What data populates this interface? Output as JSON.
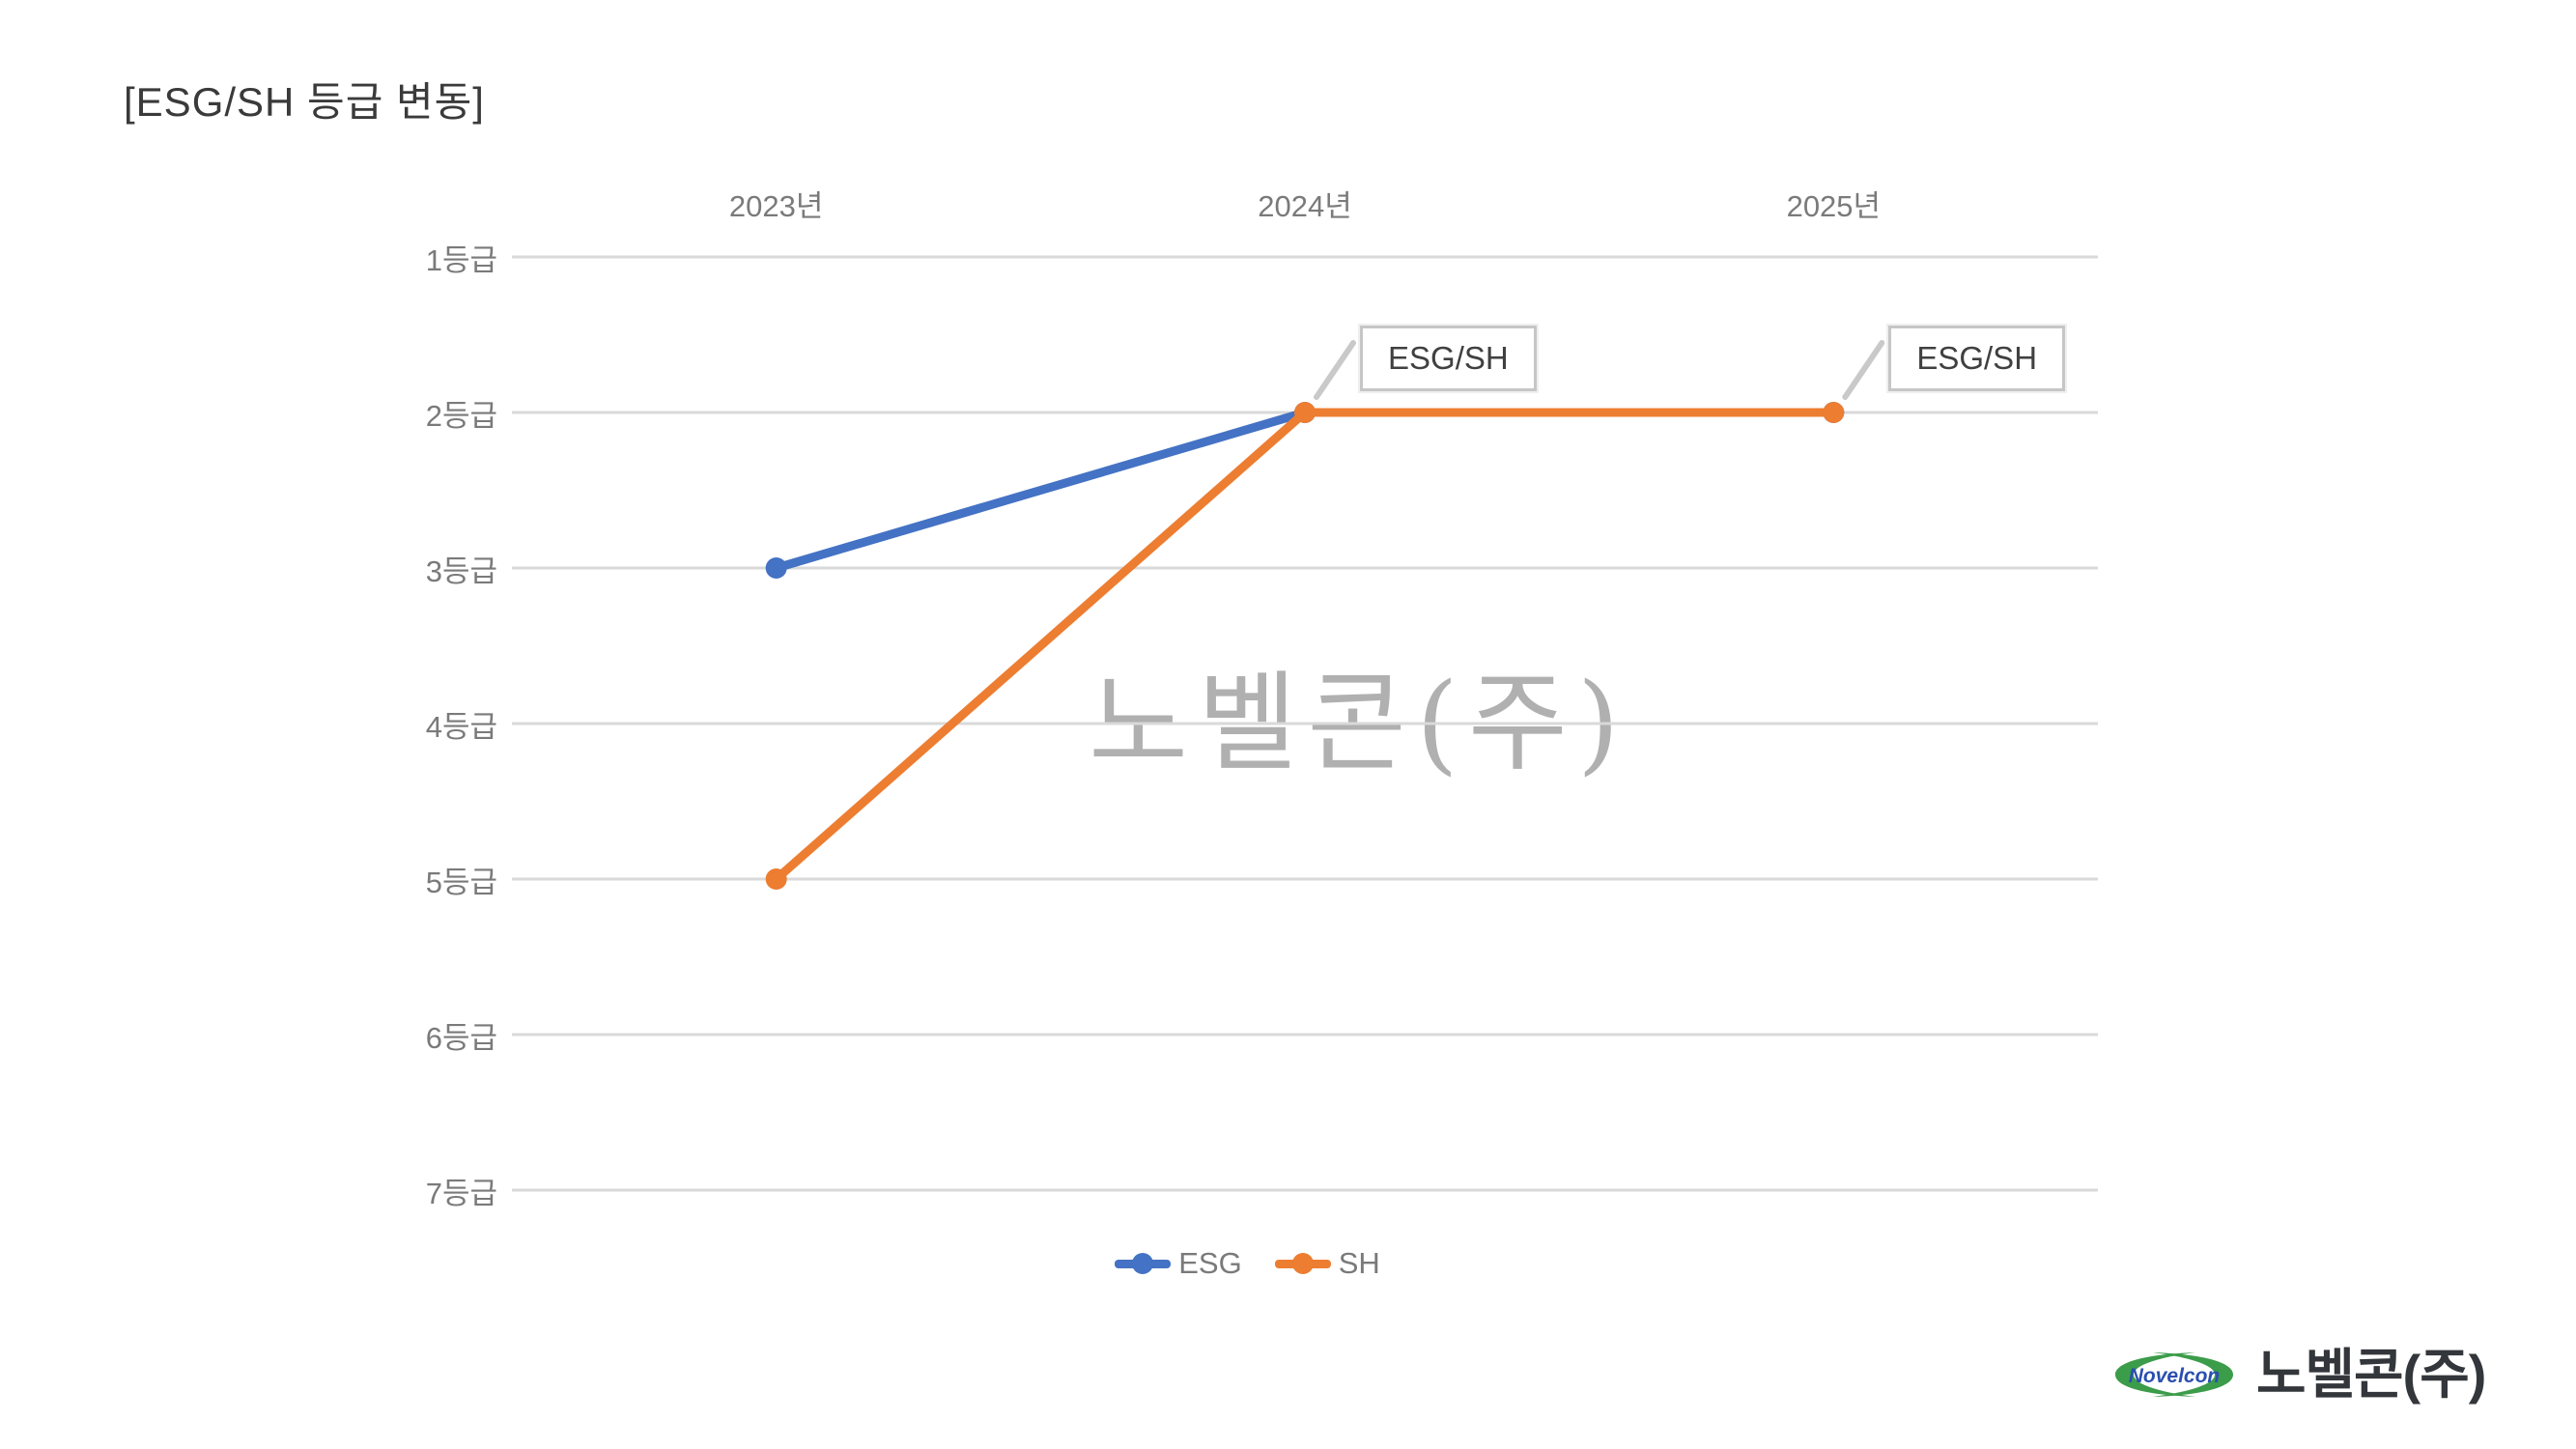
{
  "chart_data": {
    "type": "line",
    "title": "[ESG/SH 등급 변동]",
    "categories": [
      "2023년",
      "2024년",
      "2025년"
    ],
    "ytick_labels": [
      "1등급",
      "2등급",
      "3등급",
      "4등급",
      "5등급",
      "6등급",
      "7등급"
    ],
    "y_axis": {
      "min": 1,
      "max": 7,
      "reversed": true,
      "grid": true,
      "x_labels_position": "top"
    },
    "series": [
      {
        "name": "ESG",
        "color": "#4472C4",
        "values": [
          3,
          2,
          2
        ]
      },
      {
        "name": "SH",
        "color": "#ED7D31",
        "values": [
          5,
          2,
          2
        ]
      }
    ],
    "annotations": [
      {
        "category_index": 1,
        "grade": 2,
        "label": "ESG/SH"
      },
      {
        "category_index": 2,
        "grade": 2,
        "label": "ESG/SH"
      }
    ],
    "legend": {
      "position": "bottom",
      "items": [
        "ESG",
        "SH"
      ]
    }
  },
  "watermark": {
    "text": "노벨콘(주)"
  },
  "logo": {
    "name_en": "Novelcon",
    "name_ko": "노벨콘(주)"
  },
  "colors": {
    "esg_blue": "#4472C4",
    "sh_orange": "#ED7D31",
    "gridline": "#D9D9D9",
    "axis_text": "#7A7A7A",
    "title_text": "#3A3A3A",
    "callout_border": "#C6C6C6",
    "callout_text": "#404040",
    "leader_line": "#C9C9C9",
    "watermark_gray": "#919191",
    "logo_green": "#3B9C4A",
    "logo_blue": "#2B4FAF",
    "logo_text_dark": "#33363A"
  }
}
